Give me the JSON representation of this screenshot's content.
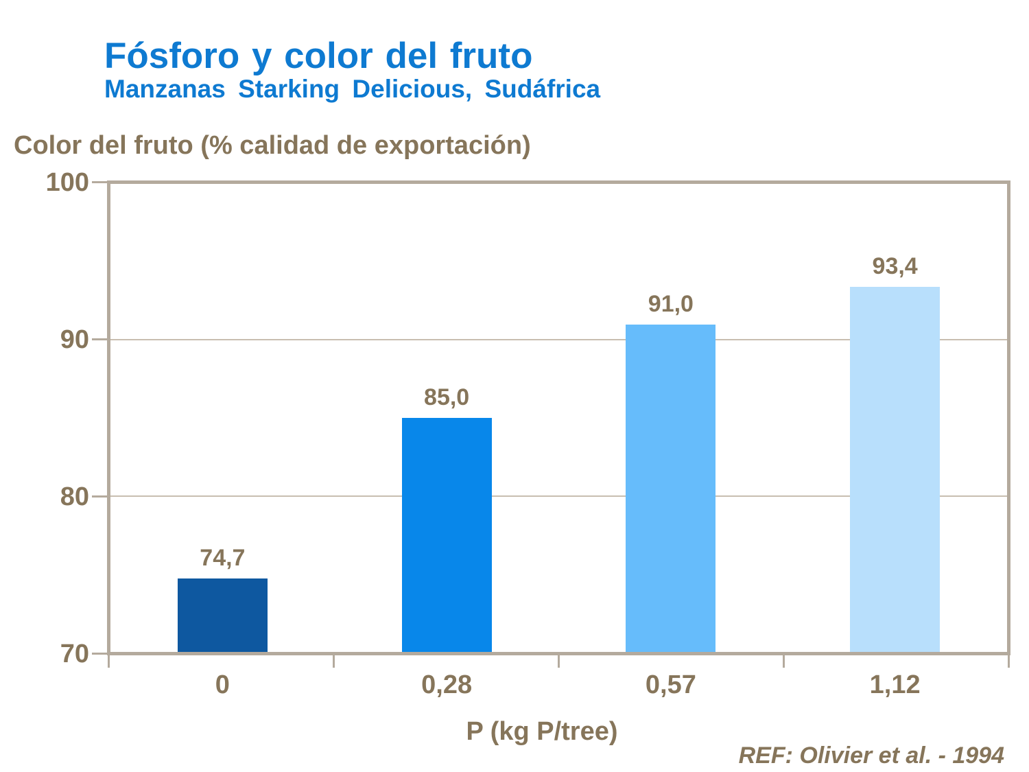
{
  "header": {
    "title": "Fósforo y color del fruto",
    "subtitle": "Manzanas Starking Delicious, Sudáfrica"
  },
  "axis_header": "Color del fruto (% calidad de exportación)",
  "x_axis_title": "P (kg P/tree)",
  "reference": "REF: Olivier et al. - 1994",
  "colors": {
    "title_blue": "#0E7AD1",
    "text_brown": "#86755A",
    "frame_tan": "#B4AA9D",
    "gridline_tan": "#C8BEB0",
    "background": "#FFFFFF"
  },
  "chart_data": {
    "type": "bar",
    "title": "Fósforo y color del fruto",
    "subtitle": "Manzanas Starking Delicious, Sudáfrica",
    "categories": [
      "0",
      "0,28",
      "0,57",
      "1,12"
    ],
    "values": [
      74.7,
      85.0,
      91.0,
      93.4
    ],
    "value_labels": [
      "74,7",
      "85,0",
      "91,0",
      "93,4"
    ],
    "bar_colors": [
      "#0E58A0",
      "#0887EA",
      "#66BCFB",
      "#B8DFFC"
    ],
    "xlabel": "P (kg P/tree)",
    "ylabel": "Color del fruto (% calidad de exportación)",
    "ylim": [
      70,
      100
    ],
    "yticks": [
      100,
      90,
      80,
      70
    ],
    "ytick_labels": [
      "100",
      "90",
      "80",
      "70"
    ],
    "grid": "horizontal gridlines at 80 and 90, tick marks outside both axes",
    "legend": "none",
    "annotation": "REF: Olivier et al. - 1994"
  }
}
